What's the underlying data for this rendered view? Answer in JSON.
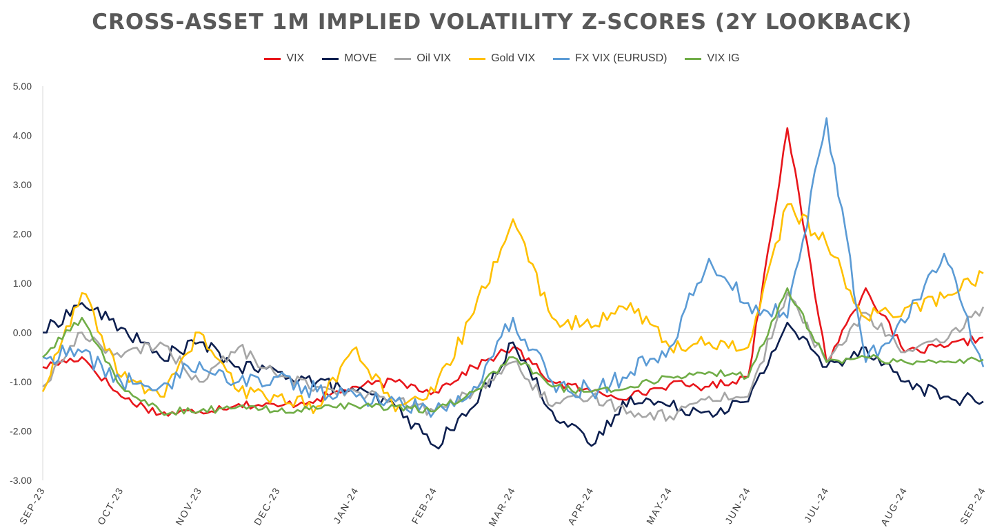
{
  "chart_data": {
    "type": "line",
    "title": "CROSS-ASSET 1M IMPLIED VOLATILITY Z-SCORES (2Y LOOKBACK)",
    "xlabel": "",
    "ylabel": "",
    "ylim": [
      -3,
      5
    ],
    "y_ticks": [
      "5.00",
      "4.00",
      "3.00",
      "2.00",
      "1.00",
      "0.00",
      "-1.00",
      "-2.00",
      "-3.00"
    ],
    "y_tick_values": [
      5,
      4,
      3,
      2,
      1,
      0,
      -1,
      -2,
      -3
    ],
    "grid": false,
    "legend_position": "top-center",
    "x_labels": [
      "SEP-23",
      "OCT-23",
      "NOV-23",
      "DEC-23",
      "JAN-24",
      "FEB-24",
      "MAR-24",
      "APR-24",
      "MAY-24",
      "JUN-24",
      "JUL-24",
      "AUG-24",
      "SEP-24"
    ],
    "x": [
      0,
      0.5,
      1,
      1.5,
      2,
      2.5,
      3,
      3.5,
      4,
      4.5,
      5,
      5.5,
      6,
      6.5,
      7,
      7.5,
      8,
      8.5,
      9,
      9.5,
      10,
      10.5,
      11,
      11.5,
      12
    ],
    "series": [
      {
        "name": "VIX",
        "color": "#e8161b",
        "values": [
          -0.7,
          -0.5,
          -1.3,
          -1.65,
          -1.6,
          -1.45,
          -1.5,
          -1.35,
          -1.1,
          -1.0,
          -1.2,
          -0.7,
          -0.3,
          -1.0,
          -1.2,
          -1.3,
          -1.05,
          -1.1,
          -0.9,
          4.15,
          -0.6,
          0.9,
          -0.4,
          -0.3,
          -0.1
        ]
      },
      {
        "name": "MOVE",
        "color": "#0d1f4f",
        "values": [
          0.0,
          0.6,
          0.1,
          -0.5,
          -0.2,
          -0.7,
          -0.8,
          -1.0,
          -1.2,
          -1.5,
          -2.3,
          -1.5,
          -0.2,
          -1.6,
          -2.3,
          -1.3,
          -1.5,
          -1.6,
          -1.4,
          0.2,
          -0.7,
          -0.3,
          -1.0,
          -1.3,
          -1.4
        ]
      },
      {
        "name": "Oil VIX",
        "color": "#a6a6a6",
        "values": [
          -1.1,
          0.0,
          -0.5,
          -0.2,
          -1.0,
          -0.3,
          -0.9,
          -1.1,
          -1.2,
          -1.4,
          -1.6,
          -1.2,
          -0.6,
          -1.5,
          -1.3,
          -1.6,
          -1.7,
          -1.3,
          -1.3,
          0.8,
          -0.6,
          0.4,
          -0.4,
          -0.2,
          0.52
        ]
      },
      {
        "name": "Gold VIX",
        "color": "#ffc000",
        "values": [
          -1.2,
          0.8,
          -0.9,
          -1.3,
          0.0,
          -1.2,
          -1.3,
          -1.5,
          -0.3,
          -1.6,
          -1.2,
          0.4,
          2.3,
          0.3,
          0.1,
          0.6,
          -0.3,
          -0.2,
          -0.3,
          2.6,
          1.8,
          0.3,
          0.5,
          0.7,
          1.2
        ]
      },
      {
        "name": "FX VIX (EURUSD)",
        "color": "#5b9bd5",
        "values": [
          -0.5,
          -0.4,
          -1.0,
          -1.1,
          -0.6,
          -1.0,
          -0.9,
          -1.2,
          -1.3,
          -1.4,
          -1.6,
          -1.1,
          0.3,
          -1.0,
          -1.2,
          -0.8,
          -0.3,
          1.5,
          0.6,
          0.3,
          4.35,
          -0.6,
          0.2,
          1.6,
          -0.7
        ]
      },
      {
        "name": "VIX IG",
        "color": "#70ad47",
        "values": [
          -0.5,
          0.3,
          -1.1,
          -1.6,
          -1.6,
          -1.5,
          -1.6,
          -1.55,
          -1.5,
          -1.5,
          -1.6,
          -1.2,
          -0.5,
          -1.1,
          -1.2,
          -1.1,
          -0.9,
          -0.8,
          -0.9,
          0.9,
          -0.6,
          -0.5,
          -0.6,
          -0.6,
          -0.55
        ]
      }
    ]
  }
}
